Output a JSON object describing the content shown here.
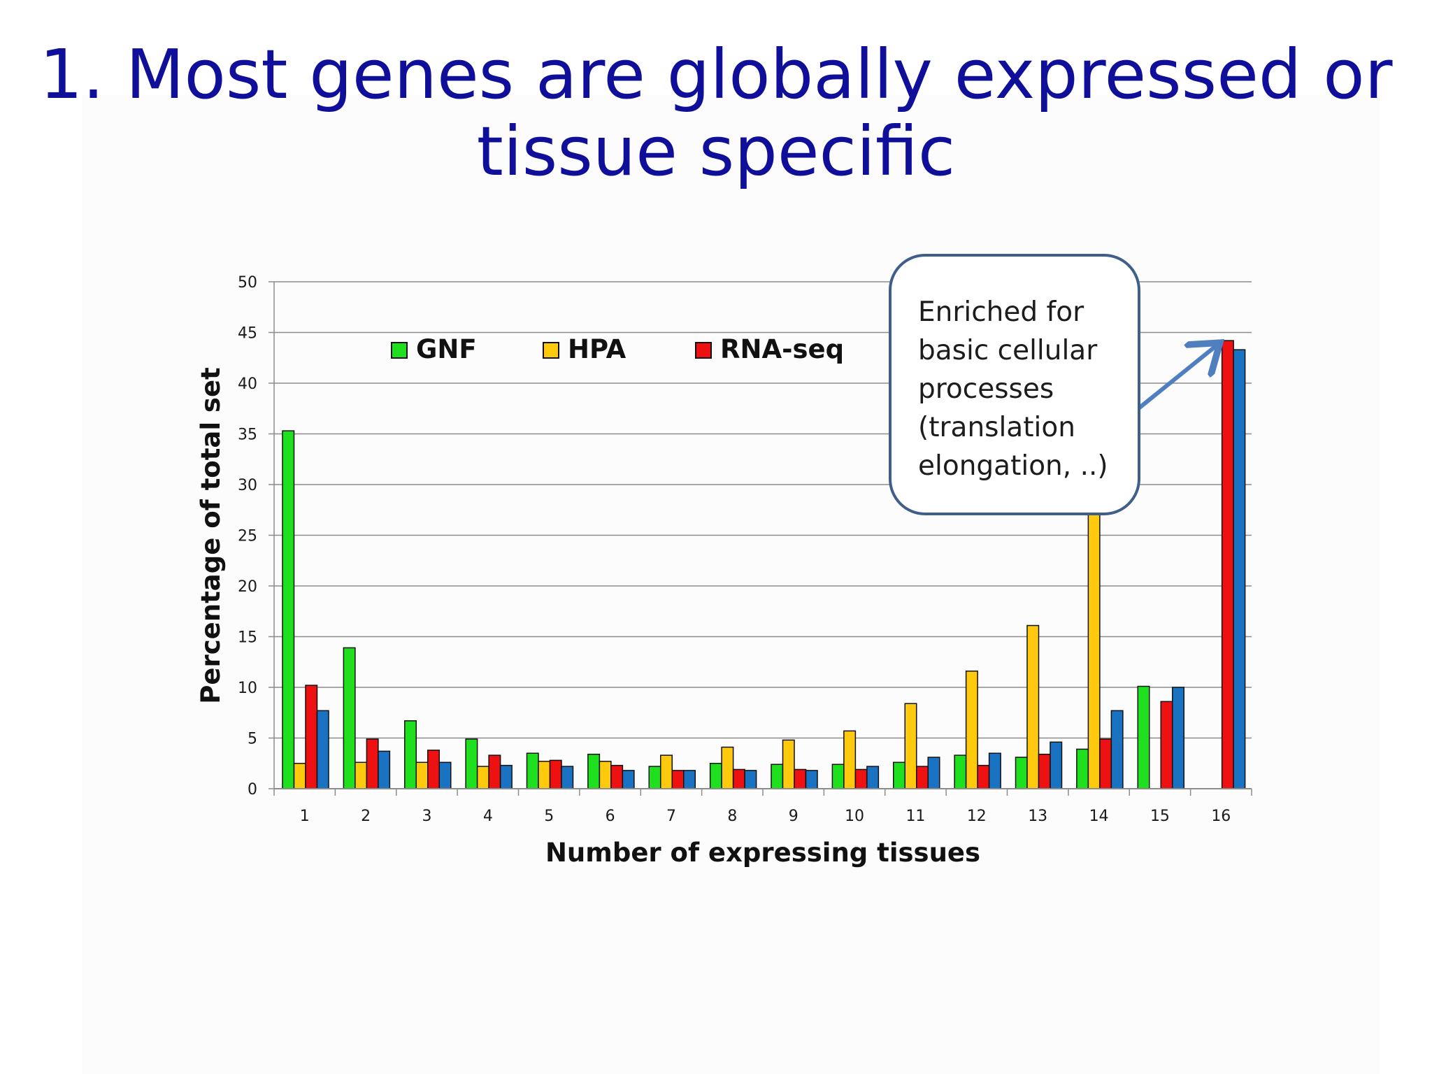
{
  "slide": {
    "title_line1": "1. Most genes are globally expressed or",
    "title_line2": "tissue specific",
    "title_color": "#0f0f9a"
  },
  "callout": {
    "lines": [
      "Enriched for",
      "basic cellular",
      "processes",
      "(translation",
      "elongation, ..)"
    ],
    "border_color": "#3e5f8a",
    "arrow_target_category": "16"
  },
  "chart_data": {
    "type": "bar",
    "xlabel": "Number of expressing tissues",
    "ylabel": "Percentage of total set",
    "ylim": [
      0,
      50
    ],
    "yticks": [
      0,
      5,
      10,
      15,
      20,
      25,
      30,
      35,
      40,
      45,
      50
    ],
    "grid": true,
    "legend_position": "top-left",
    "categories": [
      "1",
      "2",
      "3",
      "4",
      "5",
      "6",
      "7",
      "8",
      "9",
      "10",
      "11",
      "12",
      "13",
      "14",
      "15",
      "16"
    ],
    "series": [
      {
        "name": "GNF",
        "color": "#1ee01e",
        "values": [
          35.3,
          13.9,
          6.7,
          4.9,
          3.5,
          3.4,
          2.2,
          2.5,
          2.4,
          2.4,
          2.6,
          3.3,
          3.1,
          3.9,
          10.1,
          null
        ]
      },
      {
        "name": "HPA",
        "color": "#ffc90e",
        "values": [
          2.5,
          2.6,
          2.6,
          2.2,
          2.7,
          2.7,
          3.3,
          4.1,
          4.8,
          5.7,
          8.4,
          11.6,
          16.1,
          28,
          null,
          null
        ]
      },
      {
        "name": "RNA-seq",
        "color": "#ee1111",
        "values": [
          10.2,
          4.9,
          3.8,
          3.3,
          2.8,
          2.3,
          1.8,
          1.9,
          1.9,
          1.9,
          2.2,
          2.3,
          3.4,
          4.9,
          8.6,
          44.2
        ]
      },
      {
        "name": "",
        "color": "#1a72c2",
        "values": [
          7.7,
          3.7,
          2.6,
          2.3,
          2.2,
          1.8,
          1.8,
          1.8,
          1.8,
          2.2,
          3.1,
          3.5,
          4.6,
          7.7,
          10.0,
          43.3
        ]
      }
    ]
  }
}
